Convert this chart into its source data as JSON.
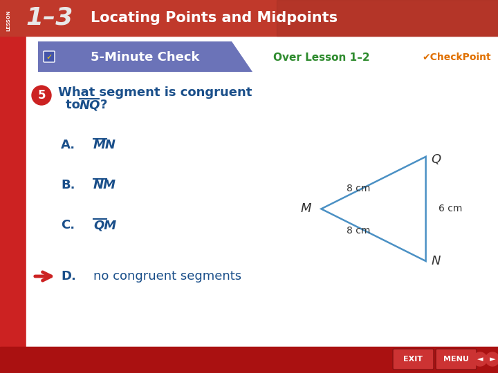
{
  "title_num": "1–3",
  "title_text": "Locating Points and Midpoints",
  "header_bg": "#C0392B",
  "header_gradient_right": "#A93226",
  "lesson_label": "LESSON",
  "five_min_check_text": "5-Minute Check",
  "five_min_check_bg": "#6B73B8",
  "over_lesson": "Over Lesson 1–2",
  "over_lesson_color": "#2E8B2E",
  "question_number": "5",
  "question_number_bg": "#CC2222",
  "question_line1": "What segment is congruent",
  "question_line2": "to ",
  "question_segment": "NQ",
  "question_end": "?",
  "question_color": "#1A4F8A",
  "answer_color": "#1A4F8A",
  "answer_labels": [
    "A.",
    "B.",
    "C.",
    "D."
  ],
  "answer_segments": [
    "MN",
    "NM",
    "QM",
    null
  ],
  "answer_d_text": "no congruent segments",
  "arrow_color": "#CC2222",
  "triangle_M": [
    0.645,
    0.56
  ],
  "triangle_N": [
    0.855,
    0.7
  ],
  "triangle_Q": [
    0.855,
    0.42
  ],
  "triangle_color": "#4A90C4",
  "triangle_linewidth": 1.8,
  "label_MN": "8 cm",
  "label_NQ": "6 cm",
  "label_MQ": "8 cm",
  "bg_white": "#FFFFFF",
  "left_bar_color": "#CC2222",
  "bottom_bar_color": "#AA1111",
  "checkpoint_color": "#E07000"
}
